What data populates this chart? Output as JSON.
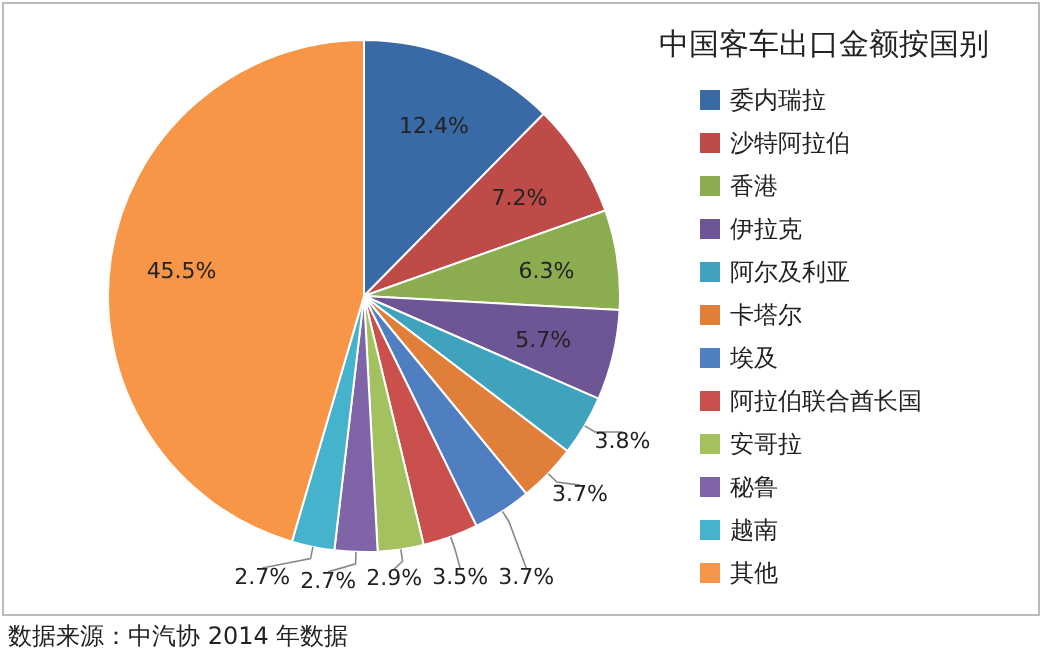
{
  "chart_data": {
    "type": "pie",
    "title": "中国客车出口金额按国别",
    "categories": [
      "委内瑞拉",
      "沙特阿拉伯",
      "香港",
      "伊拉克",
      "阿尔及利亚",
      "卡塔尔",
      "埃及",
      "阿拉伯联合酋长国",
      "安哥拉",
      "秘鲁",
      "越南",
      "其他"
    ],
    "values": [
      12.4,
      7.2,
      6.3,
      5.7,
      3.8,
      3.7,
      3.7,
      3.5,
      2.9,
      2.7,
      2.7,
      45.5
    ],
    "value_labels": [
      "12.4%",
      "7.2%",
      "6.3%",
      "5.7%",
      "3.8%",
      "3.7%",
      "3.7%",
      "3.5%",
      "2.9%",
      "2.7%",
      "2.7%",
      "45.5%"
    ],
    "colors": [
      "#3a6aa6",
      "#be4b48",
      "#8cac50",
      "#6e5595",
      "#3fa3bd",
      "#e07f3a",
      "#4f7fc0",
      "#c9504c",
      "#a3c15e",
      "#7f65a8",
      "#45b3cc",
      "#f79646"
    ],
    "legend": "right",
    "annotations": [
      "数据来源：中汽协 2014 年数据"
    ]
  }
}
